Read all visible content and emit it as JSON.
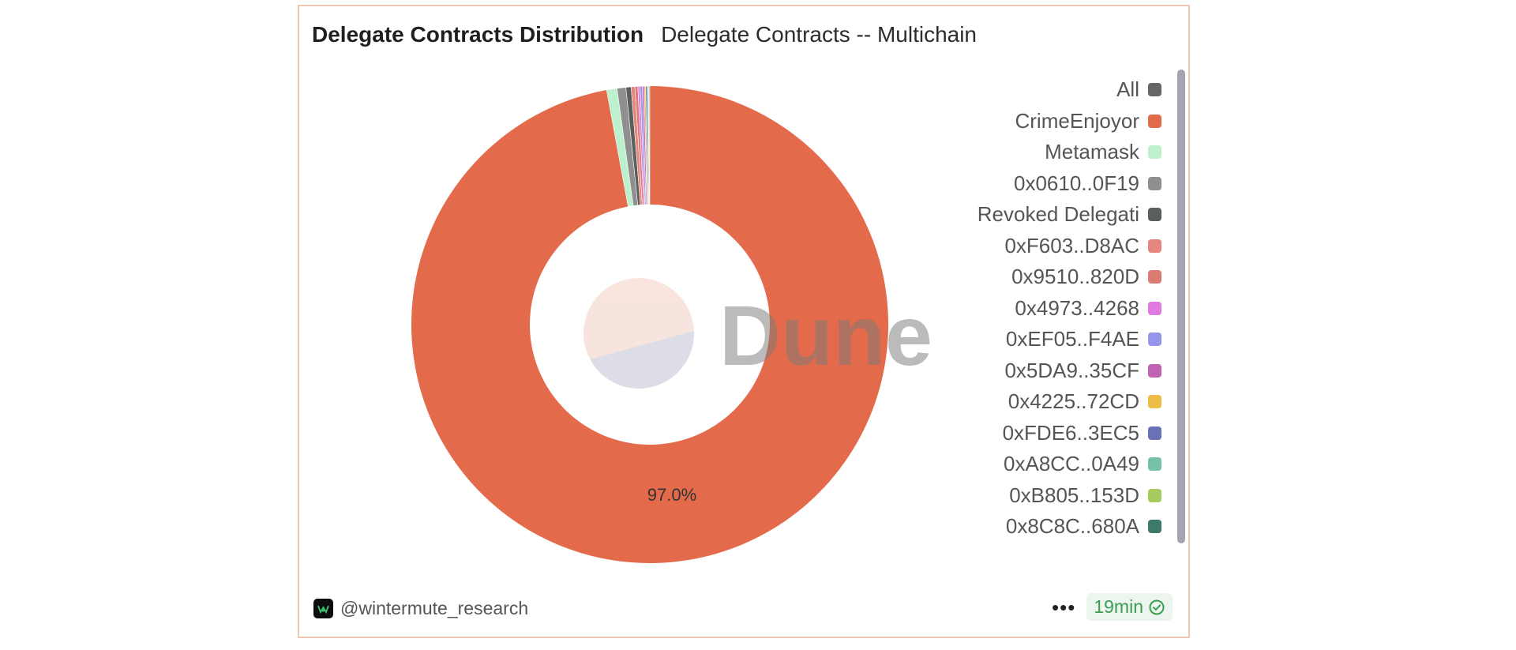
{
  "header": {
    "title": "Delegate Contracts Distribution",
    "subtitle": "Delegate Contracts -- Multichain"
  },
  "watermark": {
    "text": "Dune",
    "icon": "dune-logo-icon"
  },
  "footer": {
    "author": "@wintermute_research",
    "avatar_icon": "wintermute-avatar-icon",
    "more_icon": "ellipsis-icon",
    "refresh_age": "19min",
    "refresh_icon": "check-circle-icon"
  },
  "chart_data": {
    "type": "pie",
    "variant": "donut",
    "legend_position": "right",
    "visible_slice_label": "97.0%",
    "slices": [
      {
        "name": "CrimeEnjoyor",
        "value": 97.0,
        "color": "#e36a4b"
      },
      {
        "name": "Metamask",
        "value": 0.7,
        "color": "#bdf0cc"
      },
      {
        "name": "0x0610..0F19",
        "value": 0.6,
        "color": "#8f8f8f"
      },
      {
        "name": "Revoked Delegati",
        "value": 0.35,
        "color": "#5a5f5b"
      },
      {
        "name": "0xF603..D8AC",
        "value": 0.25,
        "color": "#e6847f"
      },
      {
        "name": "0x9510..820D",
        "value": 0.2,
        "color": "#db7b72"
      },
      {
        "name": "0x4973..4268",
        "value": 0.15,
        "color": "#e07ae0"
      },
      {
        "name": "0xEF05..F4AE",
        "value": 0.15,
        "color": "#9595ea"
      },
      {
        "name": "0x5DA9..35CF",
        "value": 0.12,
        "color": "#c262b2"
      },
      {
        "name": "0x4225..72CD",
        "value": 0.1,
        "color": "#ecbc45"
      },
      {
        "name": "0xFDE6..3EC5",
        "value": 0.1,
        "color": "#6872b5"
      },
      {
        "name": "0xA8CC..0A49",
        "value": 0.08,
        "color": "#74c2a8"
      },
      {
        "name": "0xB805..153D",
        "value": 0.05,
        "color": "#a6cc5e"
      },
      {
        "name": "0x8C8C..680A",
        "value": 0.05,
        "color": "#3e7a6a"
      }
    ],
    "legend": [
      {
        "label": "All",
        "color": "#666666"
      },
      {
        "label": "CrimeEnjoyor",
        "color": "#e36a4b"
      },
      {
        "label": "Metamask",
        "color": "#bdf0cc"
      },
      {
        "label": "0x0610..0F19",
        "color": "#8f8f8f"
      },
      {
        "label": "Revoked Delegati",
        "color": "#5a5f5b"
      },
      {
        "label": "0xF603..D8AC",
        "color": "#e6847f"
      },
      {
        "label": "0x9510..820D",
        "color": "#db7b72"
      },
      {
        "label": "0x4973..4268",
        "color": "#e07ae0"
      },
      {
        "label": "0xEF05..F4AE",
        "color": "#9595ea"
      },
      {
        "label": "0x5DA9..35CF",
        "color": "#c262b2"
      },
      {
        "label": "0x4225..72CD",
        "color": "#ecbc45"
      },
      {
        "label": "0xFDE6..3EC5",
        "color": "#6872b5"
      },
      {
        "label": "0xA8CC..0A49",
        "color": "#74c2a8"
      },
      {
        "label": "0xB805..153D",
        "color": "#a6cc5e"
      },
      {
        "label": "0x8C8C..680A",
        "color": "#3e7a6a"
      }
    ]
  }
}
